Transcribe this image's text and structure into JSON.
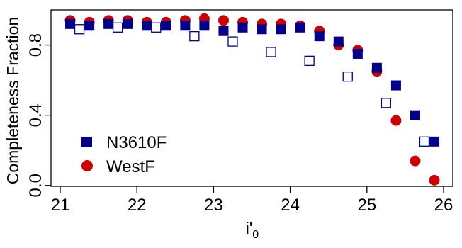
{
  "chart_data": {
    "type": "scatter",
    "title": "",
    "xlabel_main": "i'",
    "xlabel_sub": "0",
    "ylabel": "Completeness Fraction",
    "xlim": [
      20.88,
      26.12
    ],
    "ylim": [
      -0.005,
      1.0
    ],
    "xticks": [
      21,
      22,
      23,
      24,
      25,
      26
    ],
    "yticks": [
      0.0,
      0.4,
      0.8
    ],
    "ytick_labels": [
      "0.0",
      "0.4",
      "0.8"
    ],
    "grid": false,
    "legend_position": "bottom-left",
    "series": [
      {
        "name": "N3610F",
        "marker": "filled-square",
        "color": "#00008b",
        "x": [
          21.13,
          21.38,
          21.63,
          21.88,
          22.13,
          22.38,
          22.63,
          22.88,
          23.13,
          23.38,
          23.63,
          23.88,
          24.13,
          24.38,
          24.63,
          24.88,
          25.13,
          25.38,
          25.63,
          25.88
        ],
        "y": [
          0.92,
          0.91,
          0.92,
          0.92,
          0.91,
          0.91,
          0.91,
          0.91,
          0.88,
          0.9,
          0.89,
          0.89,
          0.9,
          0.85,
          0.82,
          0.75,
          0.67,
          0.57,
          0.4,
          0.25
        ]
      },
      {
        "name": "",
        "marker": "open-square",
        "color": "#00008b",
        "x": [
          21.25,
          21.75,
          22.25,
          22.75,
          23.25,
          23.75,
          24.25,
          24.75,
          25.25,
          25.75
        ],
        "y": [
          0.89,
          0.9,
          0.9,
          0.85,
          0.82,
          0.76,
          0.71,
          0.62,
          0.47,
          0.25
        ]
      },
      {
        "name": "WestF",
        "marker": "filled-circle",
        "color": "#cc0000",
        "x": [
          21.13,
          21.38,
          21.63,
          21.88,
          22.13,
          22.38,
          22.63,
          22.88,
          23.13,
          23.38,
          23.63,
          23.88,
          24.13,
          24.38,
          24.63,
          24.88,
          25.13,
          25.38,
          25.63,
          25.88
        ],
        "y": [
          0.94,
          0.93,
          0.94,
          0.94,
          0.93,
          0.93,
          0.94,
          0.95,
          0.94,
          0.93,
          0.92,
          0.92,
          0.91,
          0.88,
          0.8,
          0.77,
          0.65,
          0.37,
          0.14,
          0.03
        ]
      }
    ]
  }
}
